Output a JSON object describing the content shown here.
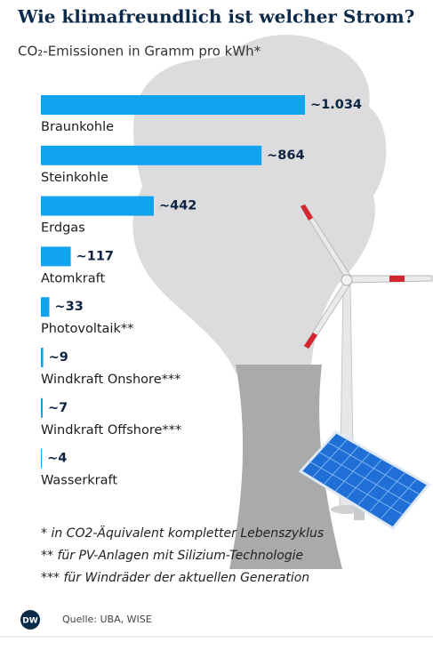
{
  "chart_data": {
    "type": "hbar",
    "title": "Wie klimafreundlich ist welcher Strom?",
    "subtitle": "CO₂-Emissionen in Gramm pro kWh*",
    "categories": [
      "Braunkohle",
      "Steinkohle",
      "Erdgas",
      "Atomkraft",
      "Photovoltaik**",
      "Windkraft Onshore***",
      "Windkraft Offshore***",
      "Wasserkraft"
    ],
    "values": [
      1034,
      864,
      442,
      117,
      33,
      9,
      7,
      4
    ],
    "value_labels": [
      "~1.034",
      "~864",
      "~442",
      "~117",
      "~33",
      "~9",
      "~7",
      "~4"
    ],
    "color": "#12a3ef",
    "footnotes": [
      "* in CO2-Äquivalent kompletter Lebenszyklus",
      "** für PV-Anlagen mit Silizium-Technologie",
      "*** für Windräder der aktuellen Generation"
    ],
    "logo": "DW",
    "source": "Quelle: UBA, WISE"
  }
}
